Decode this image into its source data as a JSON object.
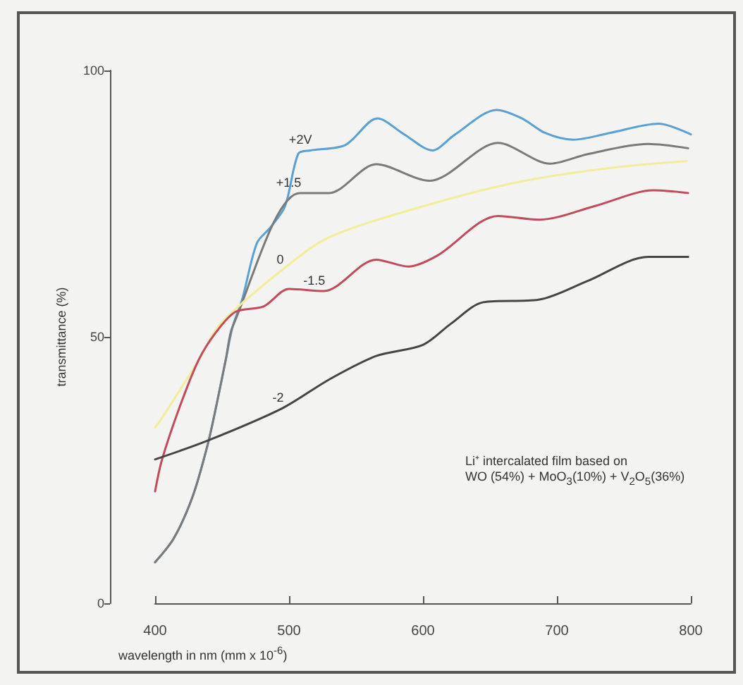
{
  "chart_data": {
    "type": "line",
    "xlabel": "wavelength in nm (mm x 10$^{-6}$)",
    "ylabel": "transmittance (%)",
    "annotations": [
      "Li⁺ intercalated film based on",
      "WO (54%) + MoO$_{3}$(10%) + V$_{2}$O$_{5}$(36%)"
    ],
    "xlim": [
      400,
      800
    ],
    "xticks": [
      400,
      500,
      600,
      700,
      800
    ],
    "ylim": [
      0,
      100
    ],
    "yticks": [
      0,
      50,
      100
    ],
    "grid": false,
    "legend": false,
    "marker": "none",
    "line_style": "solid",
    "series": [
      {
        "name": "+2V",
        "color": "#5a9fd6",
        "x": [
          400,
          414,
          428,
          439,
          446,
          453,
          458,
          465,
          476,
          486,
          497,
          507,
          516,
          542,
          566,
          586,
          607,
          624,
          655,
          674,
          691,
          712,
          740,
          776,
          800
        ],
        "values": [
          7.7,
          12.2,
          20,
          29.5,
          37.4,
          46,
          52,
          57,
          67.6,
          70.5,
          74.5,
          84.4,
          85,
          86,
          91,
          88,
          85,
          88,
          92.6,
          91,
          88.3,
          87,
          88.3,
          90,
          88
        ]
      },
      {
        "name": "+1.5",
        "color": "#7a7a7a",
        "x": [
          400,
          414,
          428,
          439,
          446,
          453,
          458,
          508,
          530,
          565,
          605,
          656,
          695,
          723,
          768,
          798
        ],
        "values": [
          7.7,
          12.2,
          20,
          29.5,
          37.4,
          46,
          52,
          77,
          77,
          82.4,
          79.3,
          86.4,
          82.5,
          84.3,
          86.2,
          85.4
        ]
      },
      {
        "name": "0",
        "color": "#f3ec9a",
        "x": [
          400,
          405,
          432,
          449,
          495,
          530,
          600,
          670,
          740,
          797
        ],
        "values": [
          33,
          34.7,
          45.4,
          52.5,
          62.6,
          68.7,
          74.5,
          79,
          81.7,
          83
        ]
      },
      {
        "name": "-1.5",
        "color": "#c24a5a",
        "x": [
          400,
          405,
          418,
          432,
          445,
          460,
          481,
          500,
          526,
          565,
          589,
          611,
          656,
          687,
          729,
          772,
          798
        ],
        "values": [
          21,
          26.8,
          36.6,
          45.4,
          50.7,
          54.7,
          55.7,
          59,
          58.6,
          64.5,
          63.2,
          65.3,
          72.7,
          72,
          74.6,
          77.5,
          77
        ]
      },
      {
        "name": "-2",
        "color": "#454545",
        "x": [
          400,
          439,
          495,
          530,
          565,
          600,
          621,
          645,
          687,
          723,
          768,
          798
        ],
        "values": [
          27,
          30.5,
          36.6,
          42,
          46.4,
          48.5,
          52.5,
          56.5,
          57,
          60.5,
          65,
          65
        ]
      }
    ]
  }
}
